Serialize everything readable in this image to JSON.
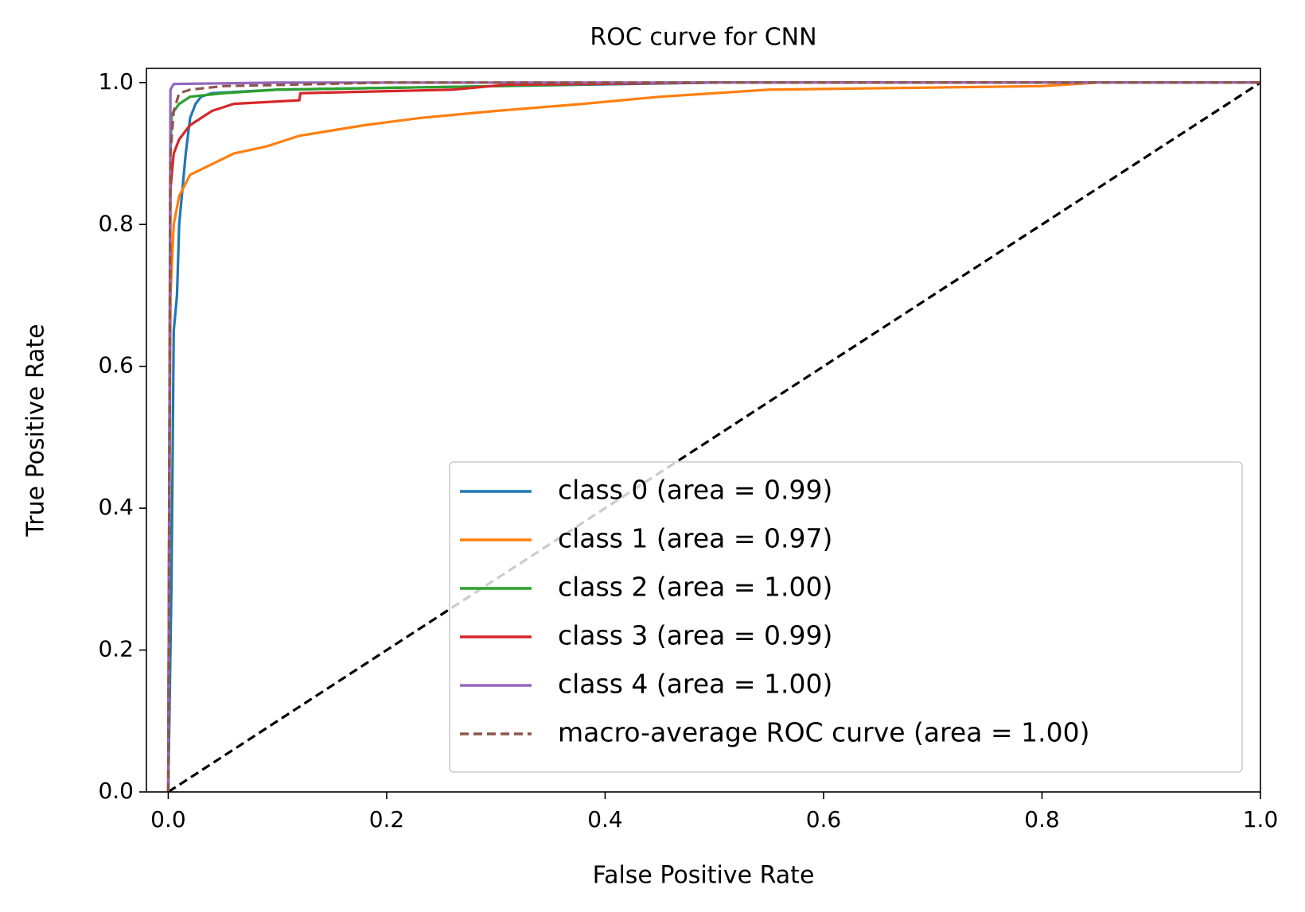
{
  "chart_data": {
    "type": "line",
    "title": "ROC curve for CNN",
    "x_label": "False Positive Rate",
    "y_label": "True Positive Rate",
    "xlim": [
      -0.02,
      1.0
    ],
    "ylim": [
      0.0,
      1.02
    ],
    "xticks": [
      {
        "value": 0,
        "label": "0.0"
      },
      0.2,
      0.4,
      0.6,
      0.8,
      {
        "value": 1,
        "label": "1.0"
      }
    ],
    "yticks": [
      {
        "value": 0,
        "label": "0.0"
      },
      0.2,
      0.4,
      0.6,
      0.8,
      {
        "value": 1,
        "label": "1.0"
      }
    ],
    "legend": "lower right",
    "series": [
      {
        "name": "class 0 (area = 0.99)",
        "color": "#1f77b4",
        "style": "solid",
        "x": [
          0,
          0.003,
          0.005,
          0.008,
          0.01,
          0.013,
          0.016,
          0.02,
          0.025,
          0.03,
          0.04,
          0.1,
          0.3,
          0.5,
          1
        ],
        "values": [
          0,
          0.3,
          0.65,
          0.7,
          0.8,
          0.85,
          0.9,
          0.95,
          0.97,
          0.98,
          0.985,
          0.99,
          0.995,
          1.0,
          1
        ]
      },
      {
        "name": "class 1 (area = 0.97)",
        "color": "#ff7f0e",
        "style": "solid",
        "x": [
          0,
          0.002,
          0.005,
          0.01,
          0.02,
          0.04,
          0.06,
          0.09,
          0.12,
          0.18,
          0.23,
          0.3,
          0.38,
          0.45,
          0.55,
          0.8,
          0.85,
          1
        ],
        "values": [
          0,
          0.7,
          0.8,
          0.84,
          0.87,
          0.885,
          0.9,
          0.91,
          0.925,
          0.94,
          0.95,
          0.96,
          0.97,
          0.98,
          0.99,
          0.995,
          1.0,
          1
        ]
      },
      {
        "name": "class 2 (area = 1.00)",
        "color": "#2ca02c",
        "style": "solid",
        "x": [
          0,
          0.002,
          0.003,
          0.01,
          0.02,
          0.05,
          0.1,
          0.3,
          0.45,
          1
        ],
        "values": [
          0,
          0.9,
          0.955,
          0.97,
          0.98,
          0.985,
          0.99,
          0.995,
          1.0,
          1
        ]
      },
      {
        "name": "class 3 (area = 0.99)",
        "color": "#d62728",
        "style": "solid",
        "x": [
          0,
          0.002,
          0.005,
          0.01,
          0.02,
          0.04,
          0.06,
          0.12,
          0.121,
          0.26,
          0.31,
          0.5,
          1
        ],
        "values": [
          0,
          0.85,
          0.9,
          0.92,
          0.94,
          0.96,
          0.97,
          0.975,
          0.985,
          0.99,
          0.997,
          1.0,
          1
        ]
      },
      {
        "name": "class 4 (area = 1.00)",
        "color": "#9467bd",
        "style": "solid",
        "x": [
          0,
          0.002,
          0.005,
          0.1,
          1
        ],
        "values": [
          0,
          0.99,
          0.998,
          1.0,
          1
        ]
      },
      {
        "name": "macro-average ROC curve (area = 1.00)",
        "color": "#8c564b",
        "style": "dashed",
        "x": [
          0,
          0.002,
          0.005,
          0.01,
          0.02,
          0.05,
          0.2,
          1
        ],
        "values": [
          0,
          0.9,
          0.96,
          0.985,
          0.99,
          0.995,
          1.0,
          1
        ]
      }
    ],
    "reference_line": {
      "x": [
        0,
        1
      ],
      "values": [
        0,
        1
      ],
      "color": "#000000",
      "style": "dashed"
    }
  }
}
